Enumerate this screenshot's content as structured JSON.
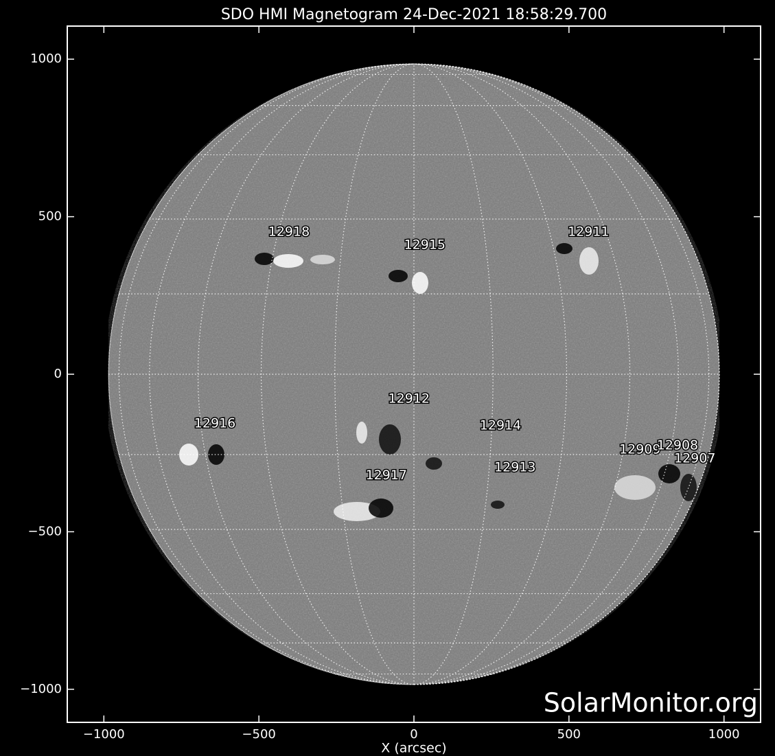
{
  "chart_data": {
    "type": "magnetogram",
    "title": "SDO HMI Magnetogram 24-Dec-2021 18:58:29.700",
    "x_label": "X (arcsec)",
    "watermark": "SolarMonitor.org",
    "xlim": [
      -1118,
      1118
    ],
    "ylim": [
      -1105,
      1105
    ],
    "xticks": [
      {
        "value": -1000,
        "label": "−1000"
      },
      {
        "value": -500,
        "label": "−500"
      },
      0,
      500,
      1000
    ],
    "yticks": [
      {
        "value": -1000,
        "label": "−1000"
      },
      {
        "value": -500,
        "label": "−500"
      },
      0,
      500,
      1000
    ],
    "disk_radius": 985,
    "regions": [
      {
        "name": "12918",
        "x": -403,
        "y": 451
      },
      {
        "name": "12915",
        "x": 35,
        "y": 410
      },
      {
        "name": "12911",
        "x": 563,
        "y": 451
      },
      {
        "name": "12912",
        "x": -16,
        "y": -78
      },
      {
        "name": "12916",
        "x": -642,
        "y": -157
      },
      {
        "name": "12914",
        "x": 279,
        "y": -163
      },
      {
        "name": "12909",
        "x": 729,
        "y": -240
      },
      {
        "name": "12908",
        "x": 850,
        "y": -227
      },
      {
        "name": "12907",
        "x": 906,
        "y": -268
      },
      {
        "name": "12913",
        "x": 326,
        "y": -296
      },
      {
        "name": "12917",
        "x": -89,
        "y": -322
      }
    ]
  }
}
